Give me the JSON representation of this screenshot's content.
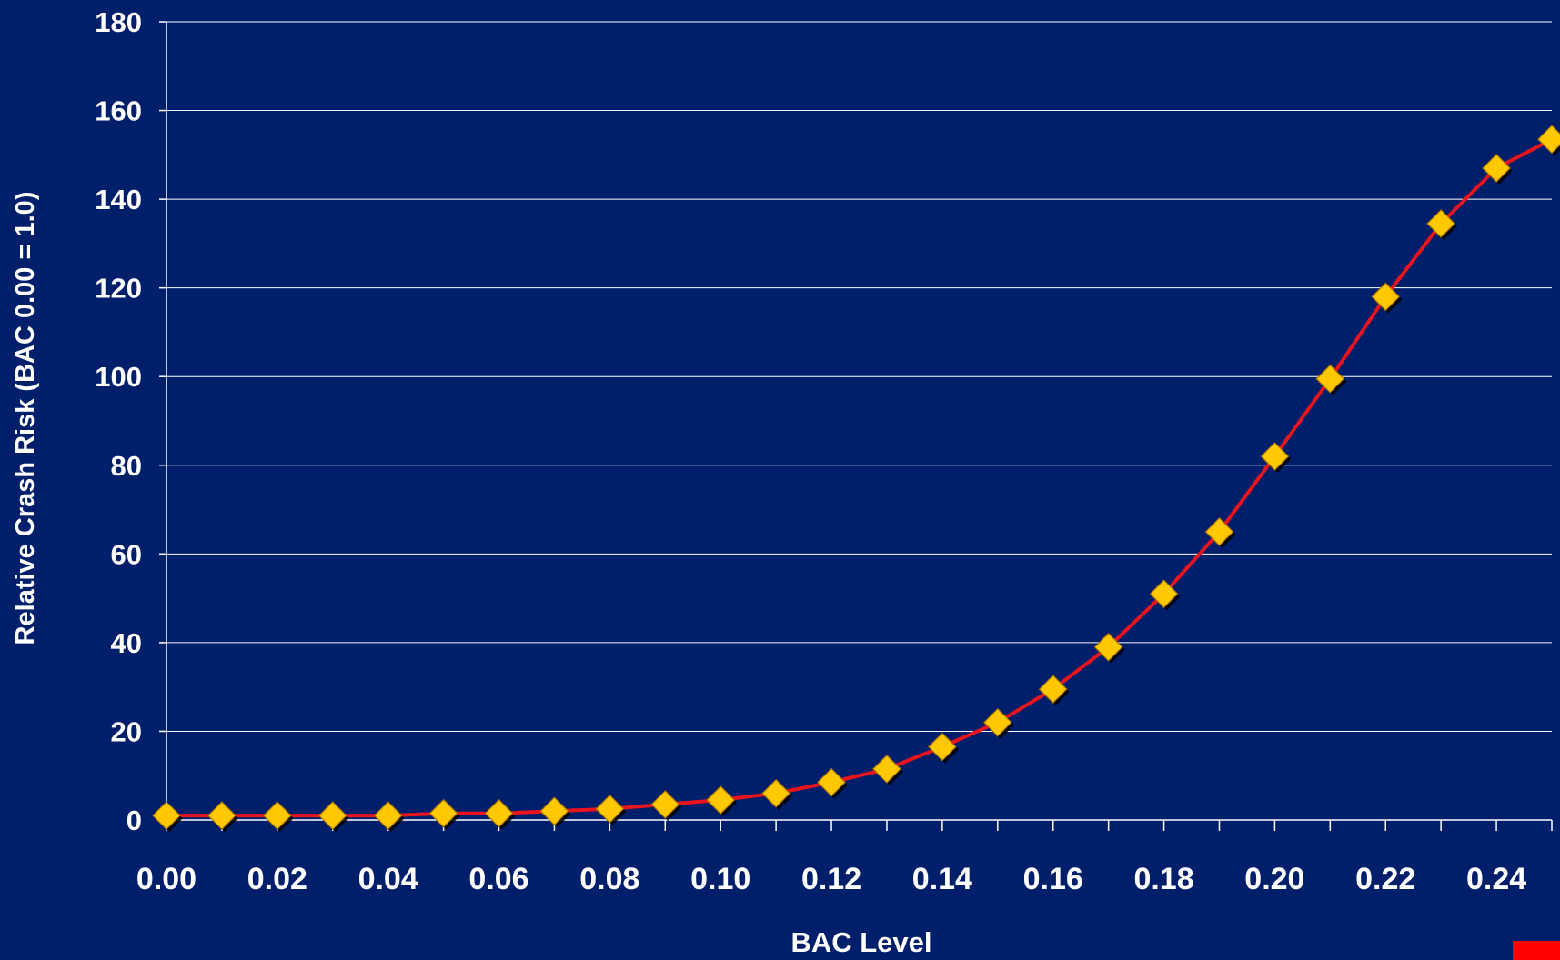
{
  "chart_data": {
    "type": "line",
    "title": "",
    "xlabel": "BAC Level",
    "ylabel": "Relative Crash Risk (BAC 0.00 = 1.0)",
    "xlim": [
      0.0,
      0.25
    ],
    "ylim": [
      0,
      180
    ],
    "x_ticks": [
      "0.00",
      "0.02",
      "0.04",
      "0.06",
      "0.08",
      "0.10",
      "0.12",
      "0.14",
      "0.16",
      "0.18",
      "0.20",
      "0.22",
      "0.24"
    ],
    "y_ticks": [
      "0",
      "20",
      "40",
      "60",
      "80",
      "100",
      "120",
      "140",
      "160",
      "180"
    ],
    "grid": "horizontal",
    "legend": "none",
    "series": [
      {
        "line_color": "#e8141e",
        "marker_color": "#ffc800",
        "marker": "diamond",
        "x": [
          0.0,
          0.01,
          0.02,
          0.03,
          0.04,
          0.05,
          0.06,
          0.07,
          0.08,
          0.09,
          0.1,
          0.11,
          0.12,
          0.13,
          0.14,
          0.15,
          0.16,
          0.17,
          0.18,
          0.19,
          0.2,
          0.21,
          0.22,
          0.23,
          0.24,
          0.25
        ],
        "y": [
          1.0,
          1.0,
          1.0,
          1.0,
          1.0,
          1.5,
          1.5,
          2.0,
          2.5,
          3.5,
          4.5,
          6.0,
          8.5,
          11.5,
          16.5,
          22.0,
          29.5,
          39.0,
          51.0,
          65.0,
          82.0,
          99.5,
          118.0,
          134.5,
          147.0,
          153.5
        ]
      }
    ]
  },
  "colors": {
    "background": "#001f6b",
    "grid": "#ffffff",
    "corner_accent": "#ff0000"
  }
}
